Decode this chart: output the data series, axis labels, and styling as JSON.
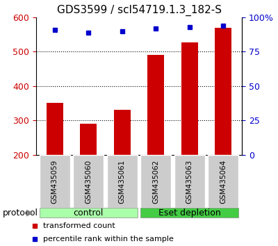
{
  "title": "GDS3599 / scl54719.1.3_182-S",
  "samples": [
    "GSM435059",
    "GSM435060",
    "GSM435061",
    "GSM435062",
    "GSM435063",
    "GSM435064"
  ],
  "red_values": [
    352,
    290,
    332,
    490,
    527,
    570
  ],
  "blue_values": [
    91,
    89,
    90,
    92,
    93,
    94
  ],
  "ylim_left": [
    200,
    600
  ],
  "ylim_right": [
    0,
    100
  ],
  "yticks_left": [
    200,
    300,
    400,
    500,
    600
  ],
  "yticks_right": [
    0,
    25,
    50,
    75,
    100
  ],
  "yticklabels_right": [
    "0",
    "25",
    "50",
    "75",
    "100%"
  ],
  "bar_color": "#cc0000",
  "dot_color": "#0000cc",
  "groups": [
    {
      "label": "control",
      "span": [
        0,
        2
      ],
      "color": "#aaffaa"
    },
    {
      "label": "Eset depletion",
      "span": [
        3,
        5
      ],
      "color": "#44cc44"
    }
  ],
  "legend_entries": [
    {
      "label": "transformed count",
      "color": "#cc0000"
    },
    {
      "label": "percentile rank within the sample",
      "color": "#0000cc"
    }
  ],
  "ylabel_left_color": "#cc0000",
  "ylabel_right_color": "#0000cc",
  "title_fontsize": 11,
  "tick_fontsize": 9,
  "figsize": [
    4.0,
    3.54
  ],
  "dpi": 100
}
